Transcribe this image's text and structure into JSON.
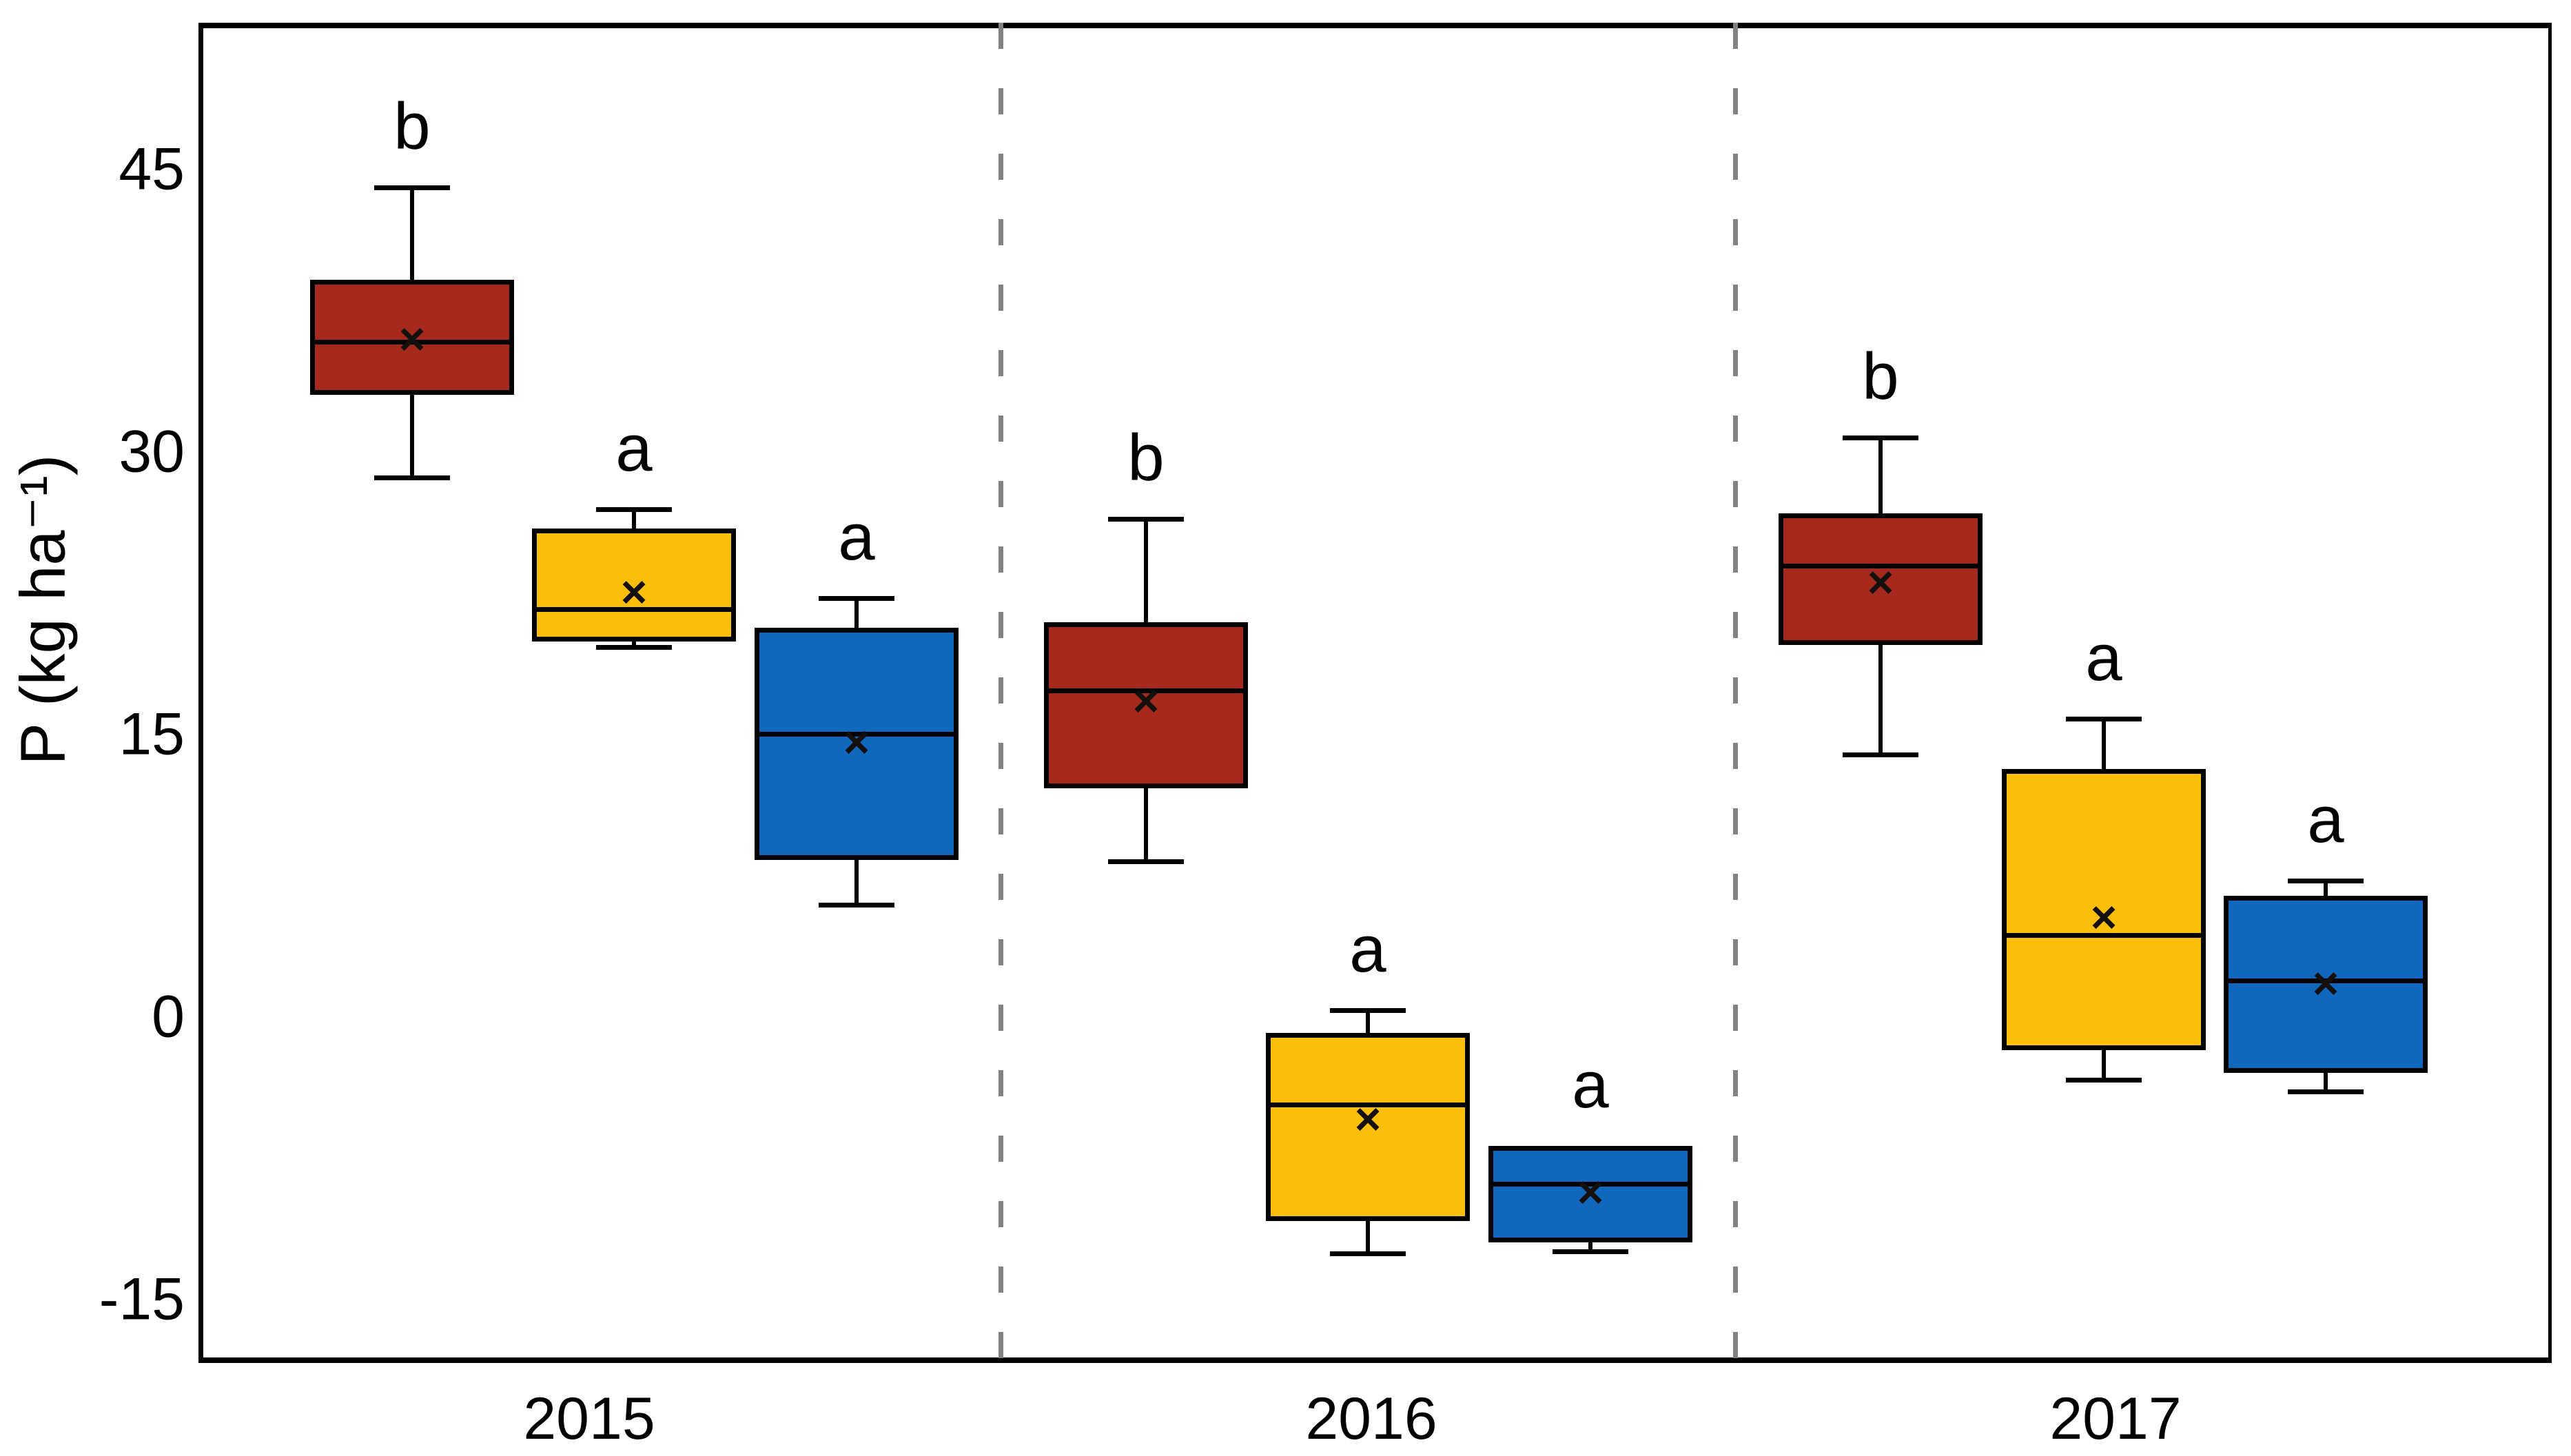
{
  "y_axis": {
    "label": "P (kg ha⁻¹)",
    "ticks": [
      "45",
      "30",
      "15",
      "0",
      "-15"
    ]
  },
  "x_axis": {
    "ticks": [
      "2015",
      "2016",
      "2017"
    ]
  },
  "mean_marker": "×",
  "colors": {
    "dark_red": "#A52A1D",
    "gold": "#FBBF0B",
    "blue": "#1166BE",
    "axis": "#000000",
    "separator_gray": "#828282"
  },
  "chart_data": {
    "type": "boxplot",
    "title": "",
    "xlabel": "",
    "ylabel": "P (kg ha⁻¹)",
    "categories": [
      "2015",
      "2016",
      "2017"
    ],
    "y_ticks": [
      45,
      30,
      15,
      0,
      -15
    ],
    "ylim": [
      -18.2,
      52.9
    ],
    "grid": false,
    "legend": "none",
    "layout_note": "three year panels separated by gray dashed vertical lines; each panel has dark-red, gold, blue boxes with mean × markers and significance letters above",
    "series": [
      {
        "name": "dark-red",
        "color": "#A52A1D",
        "boxes": [
          {
            "year": "2015",
            "whisker_low": 28.8,
            "q1": 33.2,
            "median": 36.0,
            "mean": 36.1,
            "q3": 39.3,
            "whisker_high": 44.2,
            "letter": "b"
          },
          {
            "year": "2016",
            "whisker_low": 8.4,
            "q1": 12.3,
            "median": 17.5,
            "mean": 16.9,
            "q3": 21.1,
            "whisker_high": 26.6,
            "letter": "b"
          },
          {
            "year": "2017",
            "whisker_low": 14.1,
            "q1": 19.9,
            "median": 24.1,
            "mean": 23.2,
            "q3": 26.9,
            "whisker_high": 30.9,
            "letter": "b"
          }
        ]
      },
      {
        "name": "gold",
        "color": "#FBBF0B",
        "boxes": [
          {
            "year": "2015",
            "whisker_low": 19.8,
            "q1": 20.1,
            "median": 21.8,
            "mean": 22.7,
            "q3": 26.1,
            "whisker_high": 27.1,
            "letter": "a"
          },
          {
            "year": "2016",
            "whisker_low": -12.4,
            "q1": -10.7,
            "median": -4.5,
            "mean": -5.3,
            "q3": -0.7,
            "whisker_high": 0.5,
            "letter": "a"
          },
          {
            "year": "2017",
            "whisker_low": -3.2,
            "q1": -1.6,
            "median": 4.5,
            "mean": 5.4,
            "q3": 13.3,
            "whisker_high": 16.0,
            "letter": "a"
          }
        ]
      },
      {
        "name": "blue",
        "color": "#1166BE",
        "boxes": [
          {
            "year": "2015",
            "whisker_low": 6.1,
            "q1": 8.5,
            "median": 15.2,
            "mean": 14.7,
            "q3": 20.8,
            "whisker_high": 22.4,
            "letter": "a"
          },
          {
            "year": "2016",
            "whisker_low": -12.3,
            "q1": -11.8,
            "median": -8.7,
            "mean": -9.2,
            "q3": -6.7,
            "whisker_high": null,
            "letter": "a"
          },
          {
            "year": "2017",
            "whisker_low": -3.8,
            "q1": -2.8,
            "median": 2.1,
            "mean": 1.9,
            "q3": 6.6,
            "whisker_high": 7.4,
            "letter": "a"
          }
        ]
      }
    ]
  }
}
